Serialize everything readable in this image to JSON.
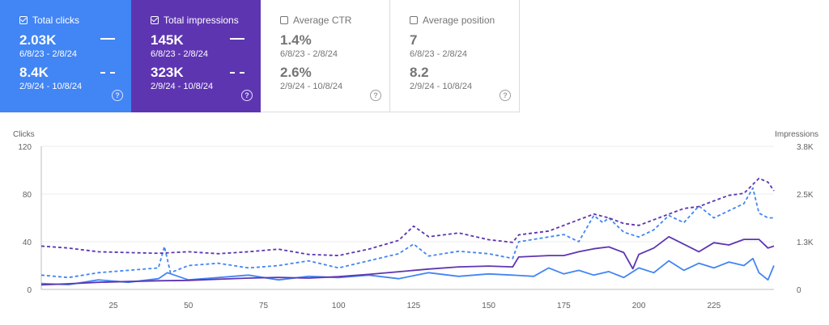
{
  "cards": [
    {
      "label": "Total clicks",
      "checked": true,
      "value1": "2.03K",
      "range1": "6/8/23 - 2/8/24",
      "value2": "8.4K",
      "range2": "2/9/24 - 10/8/24"
    },
    {
      "label": "Total impressions",
      "checked": true,
      "value1": "145K",
      "range1": "6/8/23 - 2/8/24",
      "value2": "323K",
      "range2": "2/9/24 - 10/8/24"
    },
    {
      "label": "Average CTR",
      "checked": false,
      "value1": "1.4%",
      "range1": "6/8/23 - 2/8/24",
      "value2": "2.6%",
      "range2": "2/9/24 - 10/8/24"
    },
    {
      "label": "Average position",
      "checked": false,
      "value1": "7",
      "range1": "6/8/23 - 2/8/24",
      "value2": "8.2",
      "range2": "2/9/24 - 10/8/24"
    }
  ],
  "help_glyph": "?",
  "colors": {
    "clicks": "#4285f4",
    "impressions": "#5e35b1"
  },
  "chart_data": {
    "type": "line",
    "ylabel_left": "Clicks",
    "ylabel_right": "Impressions",
    "yticks_left": [
      "0",
      "40",
      "80",
      "120"
    ],
    "yticks_right": [
      "0",
      "1.3K",
      "2.5K",
      "3.8K"
    ],
    "ylim_left": [
      0,
      120
    ],
    "ylim_right": [
      0,
      3800
    ],
    "xticks": [
      "25",
      "50",
      "75",
      "100",
      "125",
      "150",
      "175",
      "200",
      "225"
    ],
    "xlim": [
      1,
      245
    ],
    "grid": true,
    "series": [
      {
        "name": "Total clicks",
        "metric": "clicks",
        "style": "solid",
        "axis": "left",
        "x": [
          1,
          10,
          20,
          30,
          40,
          43,
          50,
          60,
          70,
          80,
          90,
          100,
          110,
          120,
          130,
          140,
          150,
          158,
          165,
          170,
          175,
          180,
          185,
          190,
          195,
          200,
          205,
          210,
          215,
          220,
          225,
          230,
          235,
          238,
          240,
          243,
          245
        ],
        "y": [
          5,
          4,
          8,
          6,
          9,
          14,
          8,
          10,
          12,
          8,
          11,
          10,
          12,
          9,
          14,
          11,
          13,
          12,
          11,
          18,
          13,
          16,
          12,
          15,
          10,
          18,
          14,
          24,
          16,
          22,
          18,
          23,
          20,
          26,
          14,
          8,
          20
        ]
      },
      {
        "name": "Total impressions",
        "metric": "impressions",
        "style": "solid",
        "axis": "right",
        "x": [
          1,
          10,
          20,
          30,
          40,
          50,
          60,
          70,
          80,
          90,
          100,
          110,
          120,
          130,
          140,
          150,
          158,
          160,
          165,
          170,
          175,
          180,
          185,
          190,
          195,
          198,
          200,
          205,
          210,
          215,
          220,
          225,
          230,
          235,
          240,
          243,
          245
        ],
        "y": [
          120,
          150,
          190,
          210,
          230,
          240,
          270,
          300,
          320,
          300,
          340,
          400,
          470,
          540,
          600,
          620,
          600,
          860,
          880,
          900,
          900,
          1000,
          1080,
          1130,
          980,
          550,
          930,
          1100,
          1400,
          1200,
          1000,
          1240,
          1180,
          1330,
          1330,
          1100,
          1150
        ]
      },
      {
        "name": "Total clicks",
        "metric": "clicks",
        "style": "dashed",
        "axis": "left",
        "x": [
          1,
          10,
          20,
          30,
          40,
          42,
          44,
          50,
          60,
          70,
          80,
          90,
          100,
          110,
          120,
          125,
          130,
          140,
          150,
          158,
          160,
          165,
          170,
          175,
          180,
          185,
          188,
          190,
          195,
          200,
          205,
          210,
          215,
          220,
          225,
          230,
          235,
          238,
          240,
          243,
          245
        ],
        "y": [
          12,
          10,
          14,
          16,
          18,
          36,
          14,
          20,
          22,
          18,
          20,
          24,
          18,
          24,
          30,
          38,
          28,
          32,
          30,
          26,
          40,
          42,
          44,
          46,
          40,
          62,
          56,
          60,
          48,
          44,
          50,
          62,
          56,
          70,
          60,
          66,
          72,
          85,
          64,
          60,
          60
        ]
      },
      {
        "name": "Total impressions",
        "metric": "impressions",
        "style": "dashed",
        "axis": "right",
        "x": [
          1,
          10,
          20,
          30,
          40,
          50,
          60,
          70,
          80,
          90,
          100,
          110,
          120,
          125,
          130,
          140,
          150,
          158,
          160,
          170,
          180,
          185,
          190,
          195,
          200,
          205,
          210,
          215,
          220,
          225,
          230,
          235,
          240,
          243,
          245
        ],
        "y": [
          1150,
          1100,
          1000,
          980,
          960,
          1000,
          950,
          1000,
          1070,
          930,
          900,
          1070,
          1300,
          1680,
          1400,
          1500,
          1320,
          1250,
          1450,
          1550,
          1850,
          2000,
          1900,
          1750,
          1700,
          1850,
          2000,
          2150,
          2200,
          2350,
          2500,
          2550,
          2950,
          2850,
          2620
        ]
      }
    ]
  }
}
